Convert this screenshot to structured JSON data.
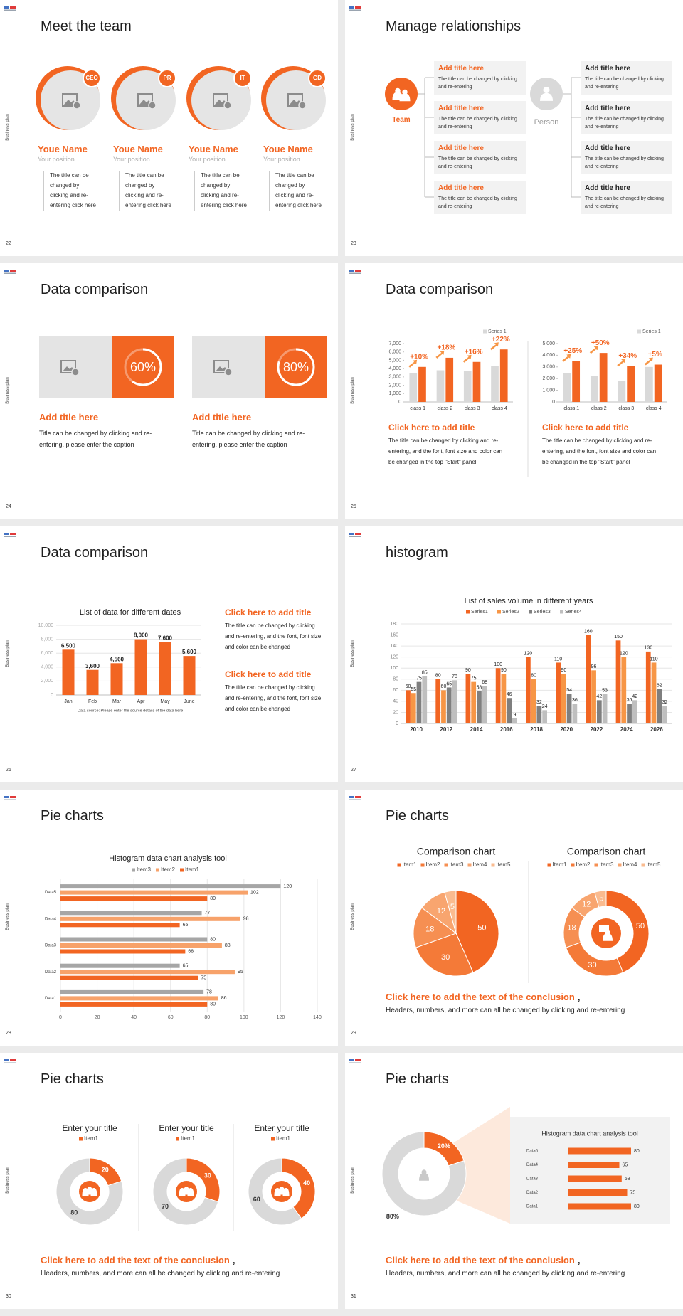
{
  "slides": [
    {
      "page": "22",
      "side_label": "Business plan",
      "title": "Meet the team",
      "members": [
        {
          "badge": "CEO",
          "name": "Youe Name",
          "position": "Your position",
          "text": "The title can be changed by clicking and re-entering click here"
        },
        {
          "badge": "PR",
          "name": "Youe Name",
          "position": "Your position",
          "text": "The title can be changed by clicking and re-entering click here"
        },
        {
          "badge": "IT",
          "name": "Youe Name",
          "position": "Your position",
          "text": "The title can be changed by clicking and re-entering click here"
        },
        {
          "badge": "GD",
          "name": "Youe Name",
          "position": "Your position",
          "text": "The title can be changed by clicking and re-entering click here"
        }
      ]
    },
    {
      "page": "23",
      "side_label": "Business plan",
      "title": "Manage relationships",
      "groups": [
        {
          "label": "Team",
          "items": [
            {
              "title": "Add title here",
              "text": "The title can be changed by clicking and re-entering"
            },
            {
              "title": "Add title here",
              "text": "The title can be changed by clicking and re-entering"
            },
            {
              "title": "Add title here",
              "text": "The title can be changed by clicking and re-entering"
            },
            {
              "title": "Add title here",
              "text": "The title can be changed by clicking and re-entering"
            }
          ]
        },
        {
          "label": "Person",
          "items": [
            {
              "title": "Add title here",
              "text": "The title can be changed by clicking and re-entering"
            },
            {
              "title": "Add title here",
              "text": "The title can be changed by clicking and re-entering"
            },
            {
              "title": "Add title here",
              "text": "The title can be changed by clicking and re-entering"
            },
            {
              "title": "Add title here",
              "text": "The title can be changed by clicking and re-entering"
            }
          ]
        }
      ]
    },
    {
      "page": "24",
      "side_label": "Business plan",
      "title": "Data comparison",
      "cards": [
        {
          "value": 60,
          "value_label": "60%",
          "title": "Add title here",
          "text": "Title can be changed by clicking and re-entering, please enter the caption"
        },
        {
          "value": 80,
          "value_label": "80%",
          "title": "Add title here",
          "text": "Title can be changed by clicking and re-entering, please enter the caption"
        }
      ]
    },
    {
      "page": "25",
      "side_label": "Business plan",
      "title": "Data comparison",
      "chart_data": [
        {
          "type": "bar",
          "categories": [
            "class 1",
            "class 2",
            "class 3",
            "class 4"
          ],
          "series": [
            {
              "name": "Series 1",
              "color": "#d9d9d9",
              "values": [
                3500,
                3800,
                3700,
                4300
              ]
            },
            {
              "color": "#f26522",
              "values": [
                4200,
                5300,
                4800,
                6300
              ]
            }
          ],
          "annotations": [
            "+10%",
            "+18%",
            "+16%",
            "+22%"
          ],
          "ylim": [
            0,
            7000
          ],
          "yticks": [
            0,
            {
              "value": 1000,
              "label": "1,000"
            },
            {
              "value": 2000,
              "label": "2,000"
            },
            {
              "value": 3000,
              "label": "3,000"
            },
            {
              "value": 4000,
              "label": "4,000"
            },
            {
              "value": 5000,
              "label": "5,000"
            },
            {
              "value": 6000,
              "label": "6,000"
            },
            {
              "value": 7000,
              "label": "7,000"
            }
          ],
          "grid": false
        },
        {
          "type": "bar",
          "categories": [
            "class 1",
            "class 2",
            "class 3",
            "class 4"
          ],
          "series": [
            {
              "name": "Series 1",
              "color": "#d9d9d9",
              "values": [
                2500,
                2200,
                1800,
                3000
              ]
            },
            {
              "color": "#f26522",
              "values": [
                3500,
                4200,
                3100,
                3200
              ]
            }
          ],
          "annotations": [
            "+25%",
            "+50%",
            "+34%",
            "+5%"
          ],
          "ylim": [
            0,
            5000
          ],
          "yticks": [
            0,
            {
              "value": 1000,
              "label": "1,000"
            },
            {
              "value": 2000,
              "label": "2,000"
            },
            {
              "value": 3000,
              "label": "3,000"
            },
            {
              "value": 4000,
              "label": "4,000"
            },
            {
              "value": 5000,
              "label": "5,000"
            }
          ],
          "grid": false
        }
      ],
      "captions": [
        {
          "title": "Click here to add title",
          "text": "The title can be changed by clicking and re-entering, and the font, font size and color can be changed in the top \"Start\" panel"
        },
        {
          "title": "Click here to add title",
          "text": "The title can be changed by clicking and re-entering, and the font, font size and color can be changed in the top \"Start\" panel"
        }
      ]
    },
    {
      "page": "26",
      "side_label": "Business plan",
      "title": "Data comparison",
      "chart_data": {
        "type": "bar",
        "title": "List of data for different dates",
        "categories": [
          "Jan",
          "Feb",
          "Mar",
          "Apr",
          "May",
          "June"
        ],
        "values": [
          6500,
          3600,
          4560,
          8000,
          7600,
          5600
        ],
        "value_labels": [
          "6,500",
          "3,600",
          "4,560",
          "8,000",
          "7,600",
          "5,600"
        ],
        "color": "#f26522",
        "ylim": [
          0,
          10000
        ],
        "yticks": [
          0,
          {
            "value": 2000,
            "label": "2,000"
          },
          {
            "value": 4000,
            "label": "4,000"
          },
          {
            "value": 6000,
            "label": "6,000"
          },
          {
            "value": 8000,
            "label": "8,000"
          },
          {
            "value": 10000,
            "label": "10,000"
          }
        ],
        "grid": true,
        "note": "Data source: Please enter the source details of the data here"
      },
      "blocks": [
        {
          "title": "Click here to add title",
          "text": "The title can be changed by clicking and re-entering, and the font, font size and color can be changed"
        },
        {
          "title": "Click here to add title",
          "text": "The title can be changed by clicking and re-entering, and the font, font size and color can be changed"
        }
      ]
    },
    {
      "page": "27",
      "side_label": "Business plan",
      "title": "histogram",
      "chart_data": {
        "type": "bar",
        "title": "List of sales volume in different years",
        "categories": [
          "2010",
          "2012",
          "2014",
          "2016",
          "2018",
          "2020",
          "2022",
          "2024",
          "2026"
        ],
        "series": [
          {
            "name": "Series1",
            "color": "#f26522",
            "values": [
              60,
              80,
              90,
              100,
              120,
              110,
              160,
              150,
              130
            ]
          },
          {
            "name": "Series2",
            "color": "#f79646",
            "values": [
              55,
              60,
              75,
              90,
              80,
              90,
              96,
              120,
              110
            ]
          },
          {
            "name": "Series3",
            "color": "#7f7f7f",
            "values": [
              75,
              65,
              58,
              46,
              32,
              54,
              42,
              36,
              62
            ]
          },
          {
            "name": "Series4",
            "color": "#bfbfbf",
            "values": [
              85,
              78,
              68,
              9,
              24,
              36,
              53,
              42,
              32
            ]
          }
        ],
        "ylim": [
          0,
          180
        ],
        "yticks": [
          0,
          20,
          40,
          60,
          80,
          100,
          120,
          140,
          160,
          180
        ],
        "grid": true
      }
    },
    {
      "page": "28",
      "side_label": "Business plan",
      "title": "Pie charts",
      "chart_data": {
        "type": "barh",
        "title": "Histogram data chart analysis tool",
        "categories": [
          "Data1",
          "Data2",
          "Data3",
          "Data4",
          "Data5"
        ],
        "series": [
          {
            "name": "Item1",
            "color": "#f26522",
            "values": [
              80,
              75,
              68,
              65,
              80
            ]
          },
          {
            "name": "Item2",
            "color": "#f7a26a",
            "values": [
              86,
              95,
              88,
              98,
              102
            ]
          },
          {
            "name": "Item3",
            "color": "#a6a6a6",
            "values": [
              78,
              65,
              80,
              77,
              120
            ]
          }
        ],
        "xlim": [
          0,
          140
        ],
        "xticks": [
          0,
          20,
          40,
          60,
          80,
          100,
          120,
          140
        ],
        "grid": true
      }
    },
    {
      "page": "29",
      "side_label": "Business plan",
      "title": "Pie charts",
      "chart_data": [
        {
          "type": "pie",
          "title": "Comparison chart",
          "categories": [
            "Item1",
            "Item2",
            "Item3",
            "Item4",
            "Item5"
          ],
          "values": [
            50,
            30,
            18,
            12,
            5
          ],
          "colors": [
            "#f26522",
            "#f47a38",
            "#f68f52",
            "#f8a56f",
            "#fabb8f"
          ]
        },
        {
          "type": "donut",
          "title": "Comparison chart",
          "categories": [
            "Item1",
            "Item2",
            "Item3",
            "Item4",
            "Item5"
          ],
          "values": [
            50,
            30,
            18,
            12,
            5
          ],
          "colors": [
            "#f26522",
            "#f47a38",
            "#f68f52",
            "#f8a56f",
            "#fabb8f"
          ]
        }
      ],
      "conclusion": {
        "title": "Click here to add the text of the conclusion",
        "mark": ",",
        "text": "Headers, numbers, and more can all be changed by clicking and re-entering"
      }
    },
    {
      "page": "30",
      "side_label": "Business plan",
      "title": "Pie charts",
      "chart_data": [
        {
          "type": "donut",
          "title": "Enter your title",
          "categories": [
            "Item1",
            null
          ],
          "values": [
            20,
            80
          ],
          "colors": [
            "#f26522",
            "#d9d9d9"
          ]
        },
        {
          "type": "donut",
          "title": "Enter your title",
          "categories": [
            "Item1",
            null
          ],
          "values": [
            30,
            70
          ],
          "colors": [
            "#f26522",
            "#d9d9d9"
          ]
        },
        {
          "type": "donut",
          "title": "Enter your title",
          "categories": [
            "Item1",
            null
          ],
          "values": [
            40,
            60
          ],
          "colors": [
            "#f26522",
            "#d9d9d9"
          ]
        }
      ],
      "conclusion": {
        "title": "Click here to add the text of the conclusion",
        "mark": ",",
        "text": "Headers, numbers, and more can all be changed by clicking and re-entering"
      }
    },
    {
      "page": "31",
      "side_label": "Business plan",
      "title": "Pie charts",
      "chart_data": [
        {
          "type": "donut",
          "values": [
            20,
            80
          ],
          "value_labels": [
            "20%",
            "80%"
          ],
          "colors": [
            "#f26522",
            "#d9d9d9"
          ]
        },
        {
          "type": "barh",
          "title": "Histogram data chart analysis tool",
          "categories": [
            "Data1",
            "Data2",
            "Data3",
            "Data4",
            "Data5"
          ],
          "values": [
            80,
            75,
            68,
            65,
            80
          ],
          "color": "#f26522"
        }
      ],
      "conclusion": {
        "title": "Click here to add the text of the conclusion",
        "mark": ",",
        "text": "Headers, numbers, and more can all be changed by clicking and re-entering"
      }
    }
  ]
}
